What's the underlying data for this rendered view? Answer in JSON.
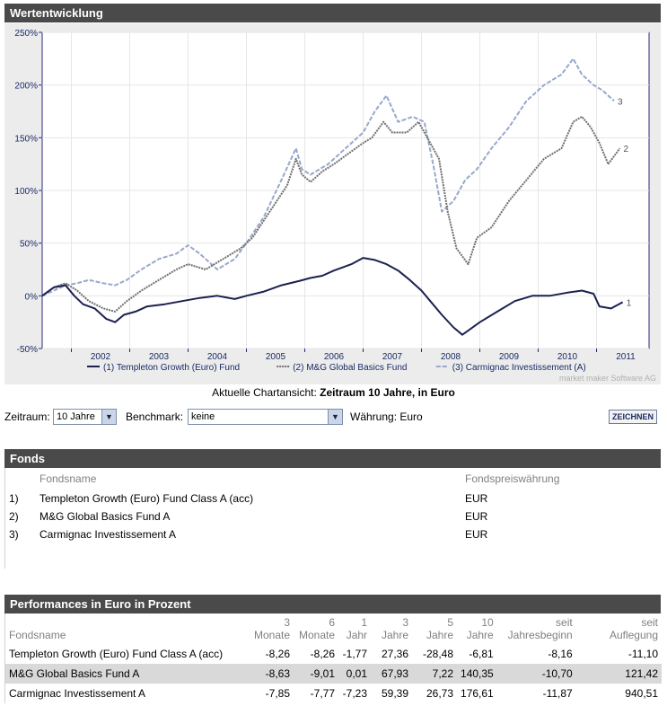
{
  "section_titles": {
    "chart": "Wertentwicklung",
    "funds": "Fonds",
    "performance": "Performances in Euro in Prozent"
  },
  "chart_data": {
    "type": "line",
    "title": "Wertentwicklung",
    "ylabel": "%",
    "ylim": [
      -50,
      250
    ],
    "y_ticks": [
      "250%",
      "200%",
      "150%",
      "100%",
      "50%",
      "0%",
      "-50%"
    ],
    "y_tick_values": [
      250,
      200,
      150,
      100,
      50,
      0,
      -50
    ],
    "x_tick_labels": [
      "2002",
      "2003",
      "2004",
      "2005",
      "2006",
      "2007",
      "2008",
      "2009",
      "2010",
      "2011"
    ],
    "xlim": [
      2001.5,
      2011.9
    ],
    "series": [
      {
        "name": "Templeton Growth (Euro) Fund",
        "legend": "(1) Templeton Growth (Euro) Fund",
        "end_label": "1",
        "color": "#1c2150",
        "style": "solid",
        "points": [
          [
            2001.5,
            0
          ],
          [
            2001.7,
            8
          ],
          [
            2001.9,
            10
          ],
          [
            2002.05,
            0
          ],
          [
            2002.2,
            -8
          ],
          [
            2002.4,
            -12
          ],
          [
            2002.6,
            -22
          ],
          [
            2002.75,
            -25
          ],
          [
            2002.9,
            -18
          ],
          [
            2003.1,
            -15
          ],
          [
            2003.3,
            -10
          ],
          [
            2003.6,
            -8
          ],
          [
            2003.9,
            -5
          ],
          [
            2004.2,
            -2
          ],
          [
            2004.5,
            0
          ],
          [
            2004.8,
            -3
          ],
          [
            2005.0,
            0
          ],
          [
            2005.3,
            4
          ],
          [
            2005.6,
            10
          ],
          [
            2005.9,
            14
          ],
          [
            2006.1,
            17
          ],
          [
            2006.3,
            19
          ],
          [
            2006.5,
            24
          ],
          [
            2006.8,
            30
          ],
          [
            2007.0,
            36
          ],
          [
            2007.2,
            34
          ],
          [
            2007.4,
            30
          ],
          [
            2007.6,
            24
          ],
          [
            2007.8,
            15
          ],
          [
            2008.0,
            5
          ],
          [
            2008.15,
            -5
          ],
          [
            2008.35,
            -18
          ],
          [
            2008.55,
            -30
          ],
          [
            2008.7,
            -37
          ],
          [
            2008.8,
            -33
          ],
          [
            2009.0,
            -25
          ],
          [
            2009.3,
            -15
          ],
          [
            2009.6,
            -5
          ],
          [
            2009.9,
            0
          ],
          [
            2010.2,
            0
          ],
          [
            2010.5,
            3
          ],
          [
            2010.75,
            5
          ],
          [
            2010.95,
            2
          ],
          [
            2011.05,
            -10
          ],
          [
            2011.25,
            -12
          ],
          [
            2011.45,
            -6
          ]
        ]
      },
      {
        "name": "M&G Global Basics Fund",
        "legend": "(2) M&G Global Basics Fund",
        "end_label": "2",
        "color": "#707070",
        "style": "dotted",
        "points": [
          [
            2001.5,
            0
          ],
          [
            2001.7,
            8
          ],
          [
            2001.9,
            12
          ],
          [
            2002.1,
            5
          ],
          [
            2002.3,
            -5
          ],
          [
            2002.55,
            -12
          ],
          [
            2002.75,
            -15
          ],
          [
            2002.95,
            -5
          ],
          [
            2003.2,
            5
          ],
          [
            2003.5,
            15
          ],
          [
            2003.8,
            25
          ],
          [
            2004.0,
            30
          ],
          [
            2004.3,
            25
          ],
          [
            2004.6,
            35
          ],
          [
            2004.9,
            45
          ],
          [
            2005.1,
            55
          ],
          [
            2005.4,
            80
          ],
          [
            2005.7,
            105
          ],
          [
            2005.85,
            130
          ],
          [
            2005.95,
            115
          ],
          [
            2006.1,
            108
          ],
          [
            2006.3,
            118
          ],
          [
            2006.5,
            125
          ],
          [
            2006.75,
            135
          ],
          [
            2007.0,
            145
          ],
          [
            2007.15,
            150
          ],
          [
            2007.35,
            165
          ],
          [
            2007.5,
            155
          ],
          [
            2007.75,
            155
          ],
          [
            2007.95,
            165
          ],
          [
            2008.1,
            150
          ],
          [
            2008.3,
            130
          ],
          [
            2008.45,
            80
          ],
          [
            2008.6,
            45
          ],
          [
            2008.8,
            30
          ],
          [
            2008.95,
            55
          ],
          [
            2009.2,
            65
          ],
          [
            2009.5,
            90
          ],
          [
            2009.8,
            110
          ],
          [
            2010.1,
            130
          ],
          [
            2010.4,
            140
          ],
          [
            2010.6,
            165
          ],
          [
            2010.75,
            170
          ],
          [
            2010.9,
            160
          ],
          [
            2011.05,
            145
          ],
          [
            2011.2,
            125
          ],
          [
            2011.4,
            140
          ]
        ]
      },
      {
        "name": "Carmignac Investissement (A)",
        "legend": "(3) Carmignac Investissement (A)",
        "end_label": "3",
        "color": "#98a8cc",
        "style": "dashed",
        "points": [
          [
            2001.5,
            0
          ],
          [
            2001.7,
            5
          ],
          [
            2001.9,
            10
          ],
          [
            2002.1,
            12
          ],
          [
            2002.3,
            15
          ],
          [
            2002.55,
            12
          ],
          [
            2002.75,
            10
          ],
          [
            2002.95,
            15
          ],
          [
            2003.2,
            25
          ],
          [
            2003.5,
            35
          ],
          [
            2003.8,
            40
          ],
          [
            2004.0,
            48
          ],
          [
            2004.2,
            40
          ],
          [
            2004.5,
            25
          ],
          [
            2004.8,
            35
          ],
          [
            2005.0,
            50
          ],
          [
            2005.3,
            75
          ],
          [
            2005.6,
            110
          ],
          [
            2005.85,
            140
          ],
          [
            2005.95,
            120
          ],
          [
            2006.1,
            115
          ],
          [
            2006.4,
            125
          ],
          [
            2006.7,
            140
          ],
          [
            2007.0,
            155
          ],
          [
            2007.2,
            175
          ],
          [
            2007.4,
            190
          ],
          [
            2007.6,
            165
          ],
          [
            2007.85,
            170
          ],
          [
            2008.05,
            165
          ],
          [
            2008.2,
            125
          ],
          [
            2008.35,
            80
          ],
          [
            2008.55,
            90
          ],
          [
            2008.75,
            110
          ],
          [
            2008.95,
            120
          ],
          [
            2009.2,
            140
          ],
          [
            2009.5,
            160
          ],
          [
            2009.8,
            185
          ],
          [
            2010.1,
            200
          ],
          [
            2010.4,
            210
          ],
          [
            2010.6,
            225
          ],
          [
            2010.75,
            210
          ],
          [
            2010.95,
            200
          ],
          [
            2011.1,
            195
          ],
          [
            2011.3,
            185
          ]
        ]
      }
    ],
    "caption_label": "Aktuelle Chartansicht:",
    "caption_value": "Zeitraum 10 Jahre, in Euro",
    "watermark": "market maker Software AG"
  },
  "controls": {
    "zeitraum_label": "Zeitraum:",
    "zeitraum_value": "10 Jahre",
    "benchmark_label": "Benchmark:",
    "benchmark_value": "keine",
    "waehrung_label": "Währung:",
    "waehrung_value": "Euro",
    "zeichnen": "ZEICHNEN"
  },
  "funds": {
    "col_name": "Fondsname",
    "col_currency": "Fondspreiswährung",
    "rows": [
      {
        "idx": "1)",
        "name": "Templeton Growth (Euro) Fund Class A (acc)",
        "currency": "EUR"
      },
      {
        "idx": "2)",
        "name": "M&G Global Basics Fund A",
        "currency": "EUR"
      },
      {
        "idx": "3)",
        "name": "Carmignac Investissement A",
        "currency": "EUR"
      }
    ]
  },
  "performance": {
    "headers": [
      {
        "l1": "",
        "l2": "Fondsname"
      },
      {
        "l1": "3",
        "l2": "Monate"
      },
      {
        "l1": "6",
        "l2": "Monate"
      },
      {
        "l1": "1",
        "l2": "Jahr"
      },
      {
        "l1": "3",
        "l2": "Jahre"
      },
      {
        "l1": "5",
        "l2": "Jahre"
      },
      {
        "l1": "10",
        "l2": "Jahre"
      },
      {
        "l1": "seit",
        "l2": "Jahresbeginn"
      },
      {
        "l1": "seit",
        "l2": "Auflegung"
      }
    ],
    "rows": [
      [
        "Templeton Growth (Euro) Fund Class A (acc)",
        "-8,26",
        "-8,26",
        "-1,77",
        "27,36",
        "-28,48",
        "-6,81",
        "-8,16",
        "-11,10"
      ],
      [
        "M&G Global Basics Fund A",
        "-8,63",
        "-9,01",
        "0,01",
        "67,93",
        "7,22",
        "140,35",
        "-10,70",
        "121,42"
      ],
      [
        "Carmignac Investissement A",
        "-7,85",
        "-7,77",
        "-7,23",
        "59,39",
        "26,73",
        "176,61",
        "-11,87",
        "940,51"
      ]
    ]
  }
}
